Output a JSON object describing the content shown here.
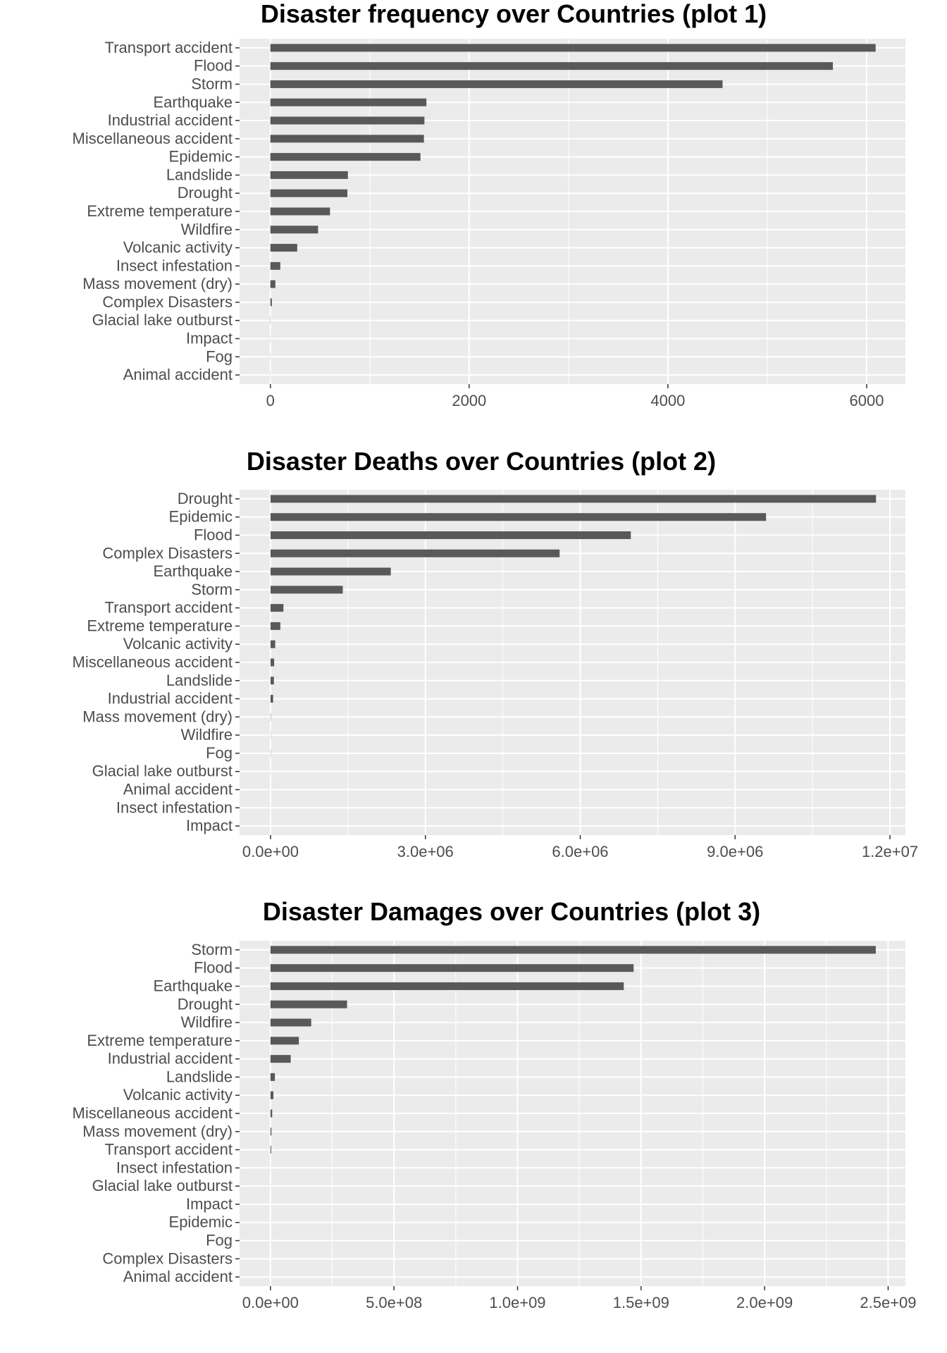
{
  "chart_data": [
    {
      "type": "bar",
      "orientation": "horizontal",
      "title": "Disaster frequency over Countries (plot 1)",
      "xlabel": "",
      "ylabel": "",
      "categories": [
        "Transport accident",
        "Flood",
        "Storm",
        "Earthquake",
        "Industrial accident",
        "Miscellaneous accident",
        "Epidemic",
        "Landslide",
        "Drought",
        "Extreme temperature",
        "Wildfire",
        "Volcanic activity",
        "Insect infestation",
        "Mass movement (dry)",
        "Complex Disasters",
        "Glacial lake outburst",
        "Impact",
        "Fog",
        "Animal accident"
      ],
      "values": [
        6090,
        5660,
        4550,
        1570,
        1550,
        1545,
        1510,
        780,
        775,
        600,
        480,
        270,
        100,
        50,
        15,
        2,
        1,
        1,
        1
      ],
      "xlim": [
        -310,
        6390
      ],
      "ticks": [
        0,
        2000,
        4000,
        6000
      ],
      "tick_labels": [
        "0",
        "2000",
        "4000",
        "6000"
      ],
      "grid": true,
      "bar_color": "#595959",
      "panel_color": "#ebebeb"
    },
    {
      "type": "bar",
      "orientation": "horizontal",
      "title": "Disaster Deaths over Countries (plot 2)",
      "xlabel": "",
      "ylabel": "",
      "categories": [
        "Drought",
        "Epidemic",
        "Flood",
        "Complex Disasters",
        "Earthquake",
        "Storm",
        "Transport accident",
        "Extreme temperature",
        "Volcanic activity",
        "Miscellaneous accident",
        "Landslide",
        "Industrial accident",
        "Mass movement (dry)",
        "Wildfire",
        "Fog",
        "Glacial lake outburst",
        "Animal accident",
        "Insect infestation",
        "Impact"
      ],
      "values": [
        11730000,
        9600000,
        6980000,
        5600000,
        2330000,
        1400000,
        250000,
        190000,
        90000,
        70000,
        65000,
        50000,
        5000,
        3000,
        4000,
        1000,
        100,
        0,
        0
      ],
      "xlim": [
        -600000,
        12300000
      ],
      "ticks": [
        0,
        3000000,
        6000000,
        9000000,
        12000000
      ],
      "tick_labels": [
        "0.0e+00",
        "3.0e+06",
        "6.0e+06",
        "9.0e+06",
        "1.2e+07"
      ],
      "grid": true,
      "bar_color": "#595959",
      "panel_color": "#ebebeb"
    },
    {
      "type": "bar",
      "orientation": "horizontal",
      "title": "Disaster Damages over Countries (plot 3)",
      "xlabel": "",
      "ylabel": "",
      "categories": [
        "Storm",
        "Flood",
        "Earthquake",
        "Drought",
        "Wildfire",
        "Extreme temperature",
        "Industrial accident",
        "Landslide",
        "Volcanic activity",
        "Miscellaneous accident",
        "Mass movement (dry)",
        "Transport accident",
        "Insect infestation",
        "Glacial lake outburst",
        "Impact",
        "Epidemic",
        "Fog",
        "Complex Disasters",
        "Animal accident"
      ],
      "values": [
        2450000000,
        1470000000,
        1430000000,
        310000000,
        165000000,
        115000000,
        82000000,
        18000000,
        12000000,
        7000000,
        4000000,
        3000000,
        100000,
        100000,
        10000,
        10000,
        0,
        0,
        0
      ],
      "xlim": [
        -125000000,
        2570000000
      ],
      "ticks": [
        0,
        500000000,
        1000000000,
        1500000000,
        2000000000,
        2500000000
      ],
      "tick_labels": [
        "0.0e+00",
        "5.0e+08",
        "1.0e+09",
        "1.5e+09",
        "2.0e+09",
        "2.5e+09"
      ],
      "grid": true,
      "bar_color": "#595959",
      "panel_color": "#ebebeb"
    }
  ]
}
